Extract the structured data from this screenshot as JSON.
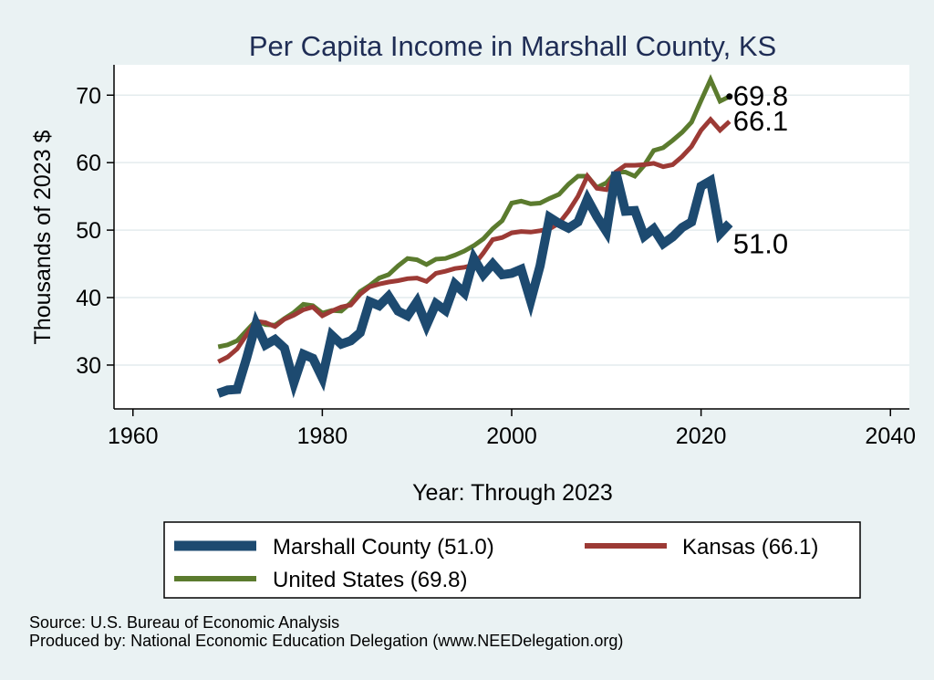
{
  "chart_data": {
    "type": "line",
    "title": "Per Capita Income in Marshall County, KS",
    "xlabel": "Year: Through 2023",
    "ylabel": "Thousands of 2023 $",
    "xlim": [
      1958,
      2042
    ],
    "ylim": [
      23.5,
      74.5
    ],
    "xticks": [
      1960,
      1980,
      2000,
      2020,
      2040
    ],
    "yticks": [
      30,
      40,
      50,
      60,
      70
    ],
    "x": [
      1969,
      1970,
      1971,
      1972,
      1973,
      1974,
      1975,
      1976,
      1977,
      1978,
      1979,
      1980,
      1981,
      1982,
      1983,
      1984,
      1985,
      1986,
      1987,
      1988,
      1989,
      1990,
      1991,
      1992,
      1993,
      1994,
      1995,
      1996,
      1997,
      1998,
      1999,
      2000,
      2001,
      2002,
      2003,
      2004,
      2005,
      2006,
      2007,
      2008,
      2009,
      2010,
      2011,
      2012,
      2013,
      2014,
      2015,
      2016,
      2017,
      2018,
      2019,
      2020,
      2021,
      2022,
      2023
    ],
    "series": [
      {
        "name": "United States",
        "color": "#5b7b2e",
        "end_label": "69.8",
        "values": [
          32.7,
          33.0,
          33.6,
          35.1,
          36.6,
          36.0,
          35.9,
          36.9,
          37.8,
          39.0,
          38.8,
          37.7,
          38.1,
          38.0,
          39.2,
          40.9,
          41.8,
          42.9,
          43.4,
          44.7,
          45.8,
          45.6,
          44.9,
          45.7,
          45.8,
          46.3,
          46.9,
          47.7,
          48.7,
          50.2,
          51.4,
          54.0,
          54.3,
          53.9,
          54.0,
          54.7,
          55.3,
          56.8,
          58.0,
          58.0,
          56.3,
          57.0,
          58.6,
          58.6,
          58.0,
          59.6,
          61.8,
          62.2,
          63.3,
          64.5,
          66.0,
          69.2,
          72.3,
          69.1,
          69.8
        ]
      },
      {
        "name": "Kansas",
        "color": "#9c3a35",
        "end_label": "66.1",
        "values": [
          30.5,
          31.2,
          32.4,
          34.5,
          36.5,
          36.3,
          35.7,
          36.8,
          37.4,
          38.2,
          38.6,
          37.3,
          38.0,
          38.6,
          38.9,
          40.5,
          41.6,
          42.0,
          42.3,
          42.5,
          42.8,
          42.9,
          42.4,
          43.6,
          43.9,
          44.3,
          44.5,
          44.8,
          46.6,
          48.6,
          48.9,
          49.6,
          49.8,
          49.7,
          49.9,
          50.2,
          51.0,
          52.8,
          55.0,
          58.0,
          56.2,
          56.0,
          58.6,
          59.6,
          59.6,
          59.7,
          59.9,
          59.4,
          59.7,
          60.9,
          62.4,
          64.8,
          66.4,
          64.8,
          66.1
        ]
      },
      {
        "name": "Marshall County",
        "color": "#1d4a70",
        "end_label": "51.0",
        "values": [
          25.8,
          26.3,
          26.4,
          31.0,
          36.1,
          33.0,
          33.8,
          32.5,
          27.4,
          31.6,
          31.0,
          28.1,
          34.4,
          33.1,
          33.6,
          34.8,
          39.4,
          38.8,
          40.2,
          38.0,
          37.3,
          39.4,
          35.9,
          39.1,
          38.1,
          42.0,
          40.7,
          45.8,
          43.4,
          45.0,
          43.4,
          43.6,
          44.2,
          39.5,
          44.7,
          51.9,
          51.0,
          50.3,
          51.2,
          54.6,
          52.0,
          49.8,
          58.6,
          52.8,
          52.9,
          49.1,
          50.2,
          48.0,
          49.0,
          50.4,
          51.2,
          56.5,
          57.3,
          49.5,
          51.0
        ]
      }
    ],
    "legend": {
      "placement": "bottom",
      "entries": [
        "Marshall County (51.0)",
        "Kansas (66.1)",
        "United States (69.8)"
      ]
    }
  },
  "footer": {
    "source": "Source: U.S. Bureau of Economic Analysis",
    "produced_by": "Produced by: National Economic Education Delegation (www.NEEDelegation.org)"
  }
}
